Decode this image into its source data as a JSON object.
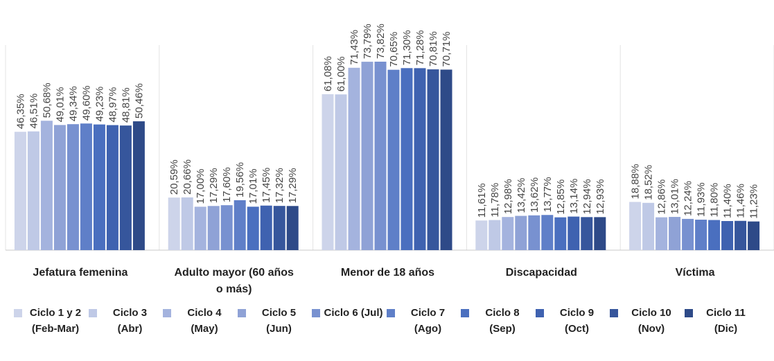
{
  "chart_data": {
    "type": "bar",
    "categories": [
      "Jefatura femenina",
      "Adulto mayor (60 años o más)",
      "Menor de 18 años",
      "Discapacidad",
      "Víctima"
    ],
    "series": [
      {
        "name": "Ciclo 1 y 2 (Feb-Mar)",
        "color": "#cdd4ea",
        "values": [
          46.35,
          20.59,
          61.08,
          11.61,
          18.88
        ],
        "value_labels": [
          "46,35%",
          "20,59%",
          "61,08%",
          "11,61%",
          "18,88%"
        ]
      },
      {
        "name": "Ciclo 3 (Abr)",
        "color": "#bfc9e6",
        "values": [
          46.51,
          20.66,
          61.0,
          11.78,
          18.52
        ],
        "value_labels": [
          "46,51%",
          "20,66%",
          "61,00%",
          "11,78%",
          "18,52%"
        ]
      },
      {
        "name": "Ciclo 4 (May)",
        "color": "#a4b3de",
        "values": [
          50.68,
          17.0,
          71.43,
          12.98,
          12.86
        ],
        "value_labels": [
          "50,68%",
          "17,00%",
          "71,43%",
          "12,98%",
          "12,86%"
        ]
      },
      {
        "name": "Ciclo 5 (Jun)",
        "color": "#8fa2d6",
        "values": [
          49.01,
          17.29,
          73.79,
          13.42,
          13.01
        ],
        "value_labels": [
          "49,01%",
          "17,29%",
          "73,79%",
          "13,42%",
          "13,01%"
        ]
      },
      {
        "name": "Ciclo 6 (Jul)",
        "color": "#7891d0",
        "values": [
          49.34,
          17.6,
          73.82,
          13.62,
          12.24
        ],
        "value_labels": [
          "49,34%",
          "17,60%",
          "73,82%",
          "13,62%",
          "12,24%"
        ]
      },
      {
        "name": "Ciclo 7 (Ago)",
        "color": "#5f7fc8",
        "values": [
          49.6,
          19.56,
          70.65,
          13.77,
          11.93
        ],
        "value_labels": [
          "49,60%",
          "19,56%",
          "70,65%",
          "13,77%",
          "11,93%"
        ]
      },
      {
        "name": "Ciclo 8 (Sep)",
        "color": "#4a6fbf",
        "values": [
          49.23,
          17.01,
          71.3,
          12.85,
          11.8
        ],
        "value_labels": [
          "49,23%",
          "17,01%",
          "71,30%",
          "12,85%",
          "11,80%"
        ]
      },
      {
        "name": "Ciclo 9 (Oct)",
        "color": "#3f62b0",
        "values": [
          48.97,
          17.45,
          71.28,
          13.14,
          11.4
        ],
        "value_labels": [
          "48,97%",
          "17,45%",
          "71,28%",
          "13,14%",
          "11,40%"
        ]
      },
      {
        "name": "Ciclo 10 (Nov)",
        "color": "#36569c",
        "values": [
          48.81,
          17.32,
          70.81,
          12.94,
          11.46
        ],
        "value_labels": [
          "48,81%",
          "17,32%",
          "70,81%",
          "12,94%",
          "11,46%"
        ]
      },
      {
        "name": "Ciclo 11 (Dic)",
        "color": "#2e4a88",
        "values": [
          50.46,
          17.29,
          70.71,
          12.93,
          11.23
        ],
        "value_labels": [
          "50,46%",
          "17,29%",
          "70,71%",
          "12,93%",
          "11,23%"
        ]
      }
    ]
  }
}
